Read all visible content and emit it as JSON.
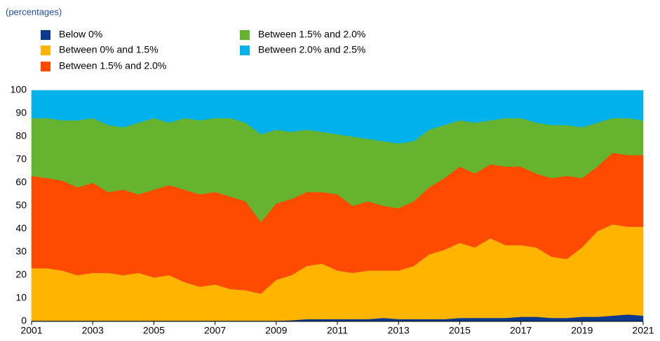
{
  "chart_data": {
    "type": "stacked_area",
    "subtitle": "(percentages)",
    "x": [
      2001,
      2001.5,
      2002,
      2002.5,
      2003,
      2003.5,
      2004,
      2004.5,
      2005,
      2005.5,
      2006,
      2006.5,
      2007,
      2007.5,
      2008,
      2008.5,
      2009,
      2009.5,
      2010,
      2010.5,
      2011,
      2011.5,
      2012,
      2012.5,
      2013,
      2013.5,
      2014,
      2014.5,
      2015,
      2015.5,
      2016,
      2016.5,
      2017,
      2017.5,
      2018,
      2018.5,
      2019,
      2019.5,
      2020,
      2020.5,
      2021
    ],
    "series": [
      {
        "name": "Below 0%",
        "color": "#0d3a8c",
        "values": [
          0.3,
          0.3,
          0.3,
          0.3,
          0.3,
          0.3,
          0.3,
          0.3,
          0.3,
          0.3,
          0.3,
          0.3,
          0.3,
          0.3,
          0.3,
          0.3,
          0.3,
          0.5,
          1,
          1,
          1,
          1,
          1,
          1.5,
          1,
          1,
          1,
          1,
          1.5,
          1.5,
          1.5,
          1.5,
          2,
          2,
          1.5,
          1.5,
          2,
          2,
          2.5,
          3,
          2.5
        ]
      },
      {
        "name": "Between 0% and 1.5%",
        "color": "#ffb400",
        "values": [
          22.7,
          22.7,
          21.7,
          19.7,
          20.7,
          20.7,
          19.7,
          20.7,
          18.7,
          19.7,
          16.7,
          14.7,
          15.7,
          13.7,
          13.2,
          11.7,
          17.7,
          19.5,
          23,
          24,
          21,
          20,
          21,
          20.5,
          21,
          23,
          28,
          30,
          32.5,
          30.5,
          34.5,
          31.5,
          31,
          30,
          26.5,
          25.5,
          30,
          37,
          39.5,
          38,
          38.5
        ]
      },
      {
        "name": "Between 1.5% and 2.0%",
        "color": "#ff4b00",
        "values": [
          40,
          39,
          39,
          38,
          39,
          35,
          37,
          34,
          38,
          39,
          40,
          40,
          40,
          40,
          38.5,
          31,
          33,
          33,
          32,
          31,
          33,
          29,
          30,
          28,
          27,
          28,
          29,
          31,
          33,
          32,
          32,
          34,
          34,
          32,
          34,
          36,
          30,
          28,
          31,
          31,
          31
        ]
      },
      {
        "name": "Between 1.5% and 2.0%",
        "color": "#65b32e",
        "values": [
          25,
          26,
          26,
          29,
          28,
          29,
          27,
          31,
          31,
          27,
          31,
          32,
          32,
          34,
          34,
          38,
          32,
          29,
          27,
          26,
          26,
          30,
          27,
          28,
          28,
          26,
          25,
          23,
          20,
          22,
          19,
          21,
          21,
          22,
          23,
          22,
          22,
          19,
          15,
          16,
          15
        ]
      },
      {
        "name": "Between 2.0% and 2.5%",
        "color": "#00b1ea",
        "values": [
          12,
          12,
          13,
          13,
          12,
          15,
          16,
          14,
          12,
          14,
          12,
          13,
          12,
          12,
          14,
          19,
          17,
          18,
          17,
          18,
          19,
          20,
          21,
          22,
          23,
          22,
          17,
          15,
          13,
          14,
          13,
          12,
          12,
          14,
          15,
          15,
          16,
          14,
          12,
          12,
          13
        ]
      }
    ],
    "xlim": [
      2001,
      2021
    ],
    "xticks": [
      2001,
      2003,
      2005,
      2007,
      2009,
      2011,
      2013,
      2015,
      2017,
      2019,
      2021
    ],
    "ylim": [
      0,
      100
    ],
    "yticks": [
      0,
      10,
      20,
      30,
      40,
      50,
      60,
      70,
      80,
      90,
      100
    ]
  }
}
